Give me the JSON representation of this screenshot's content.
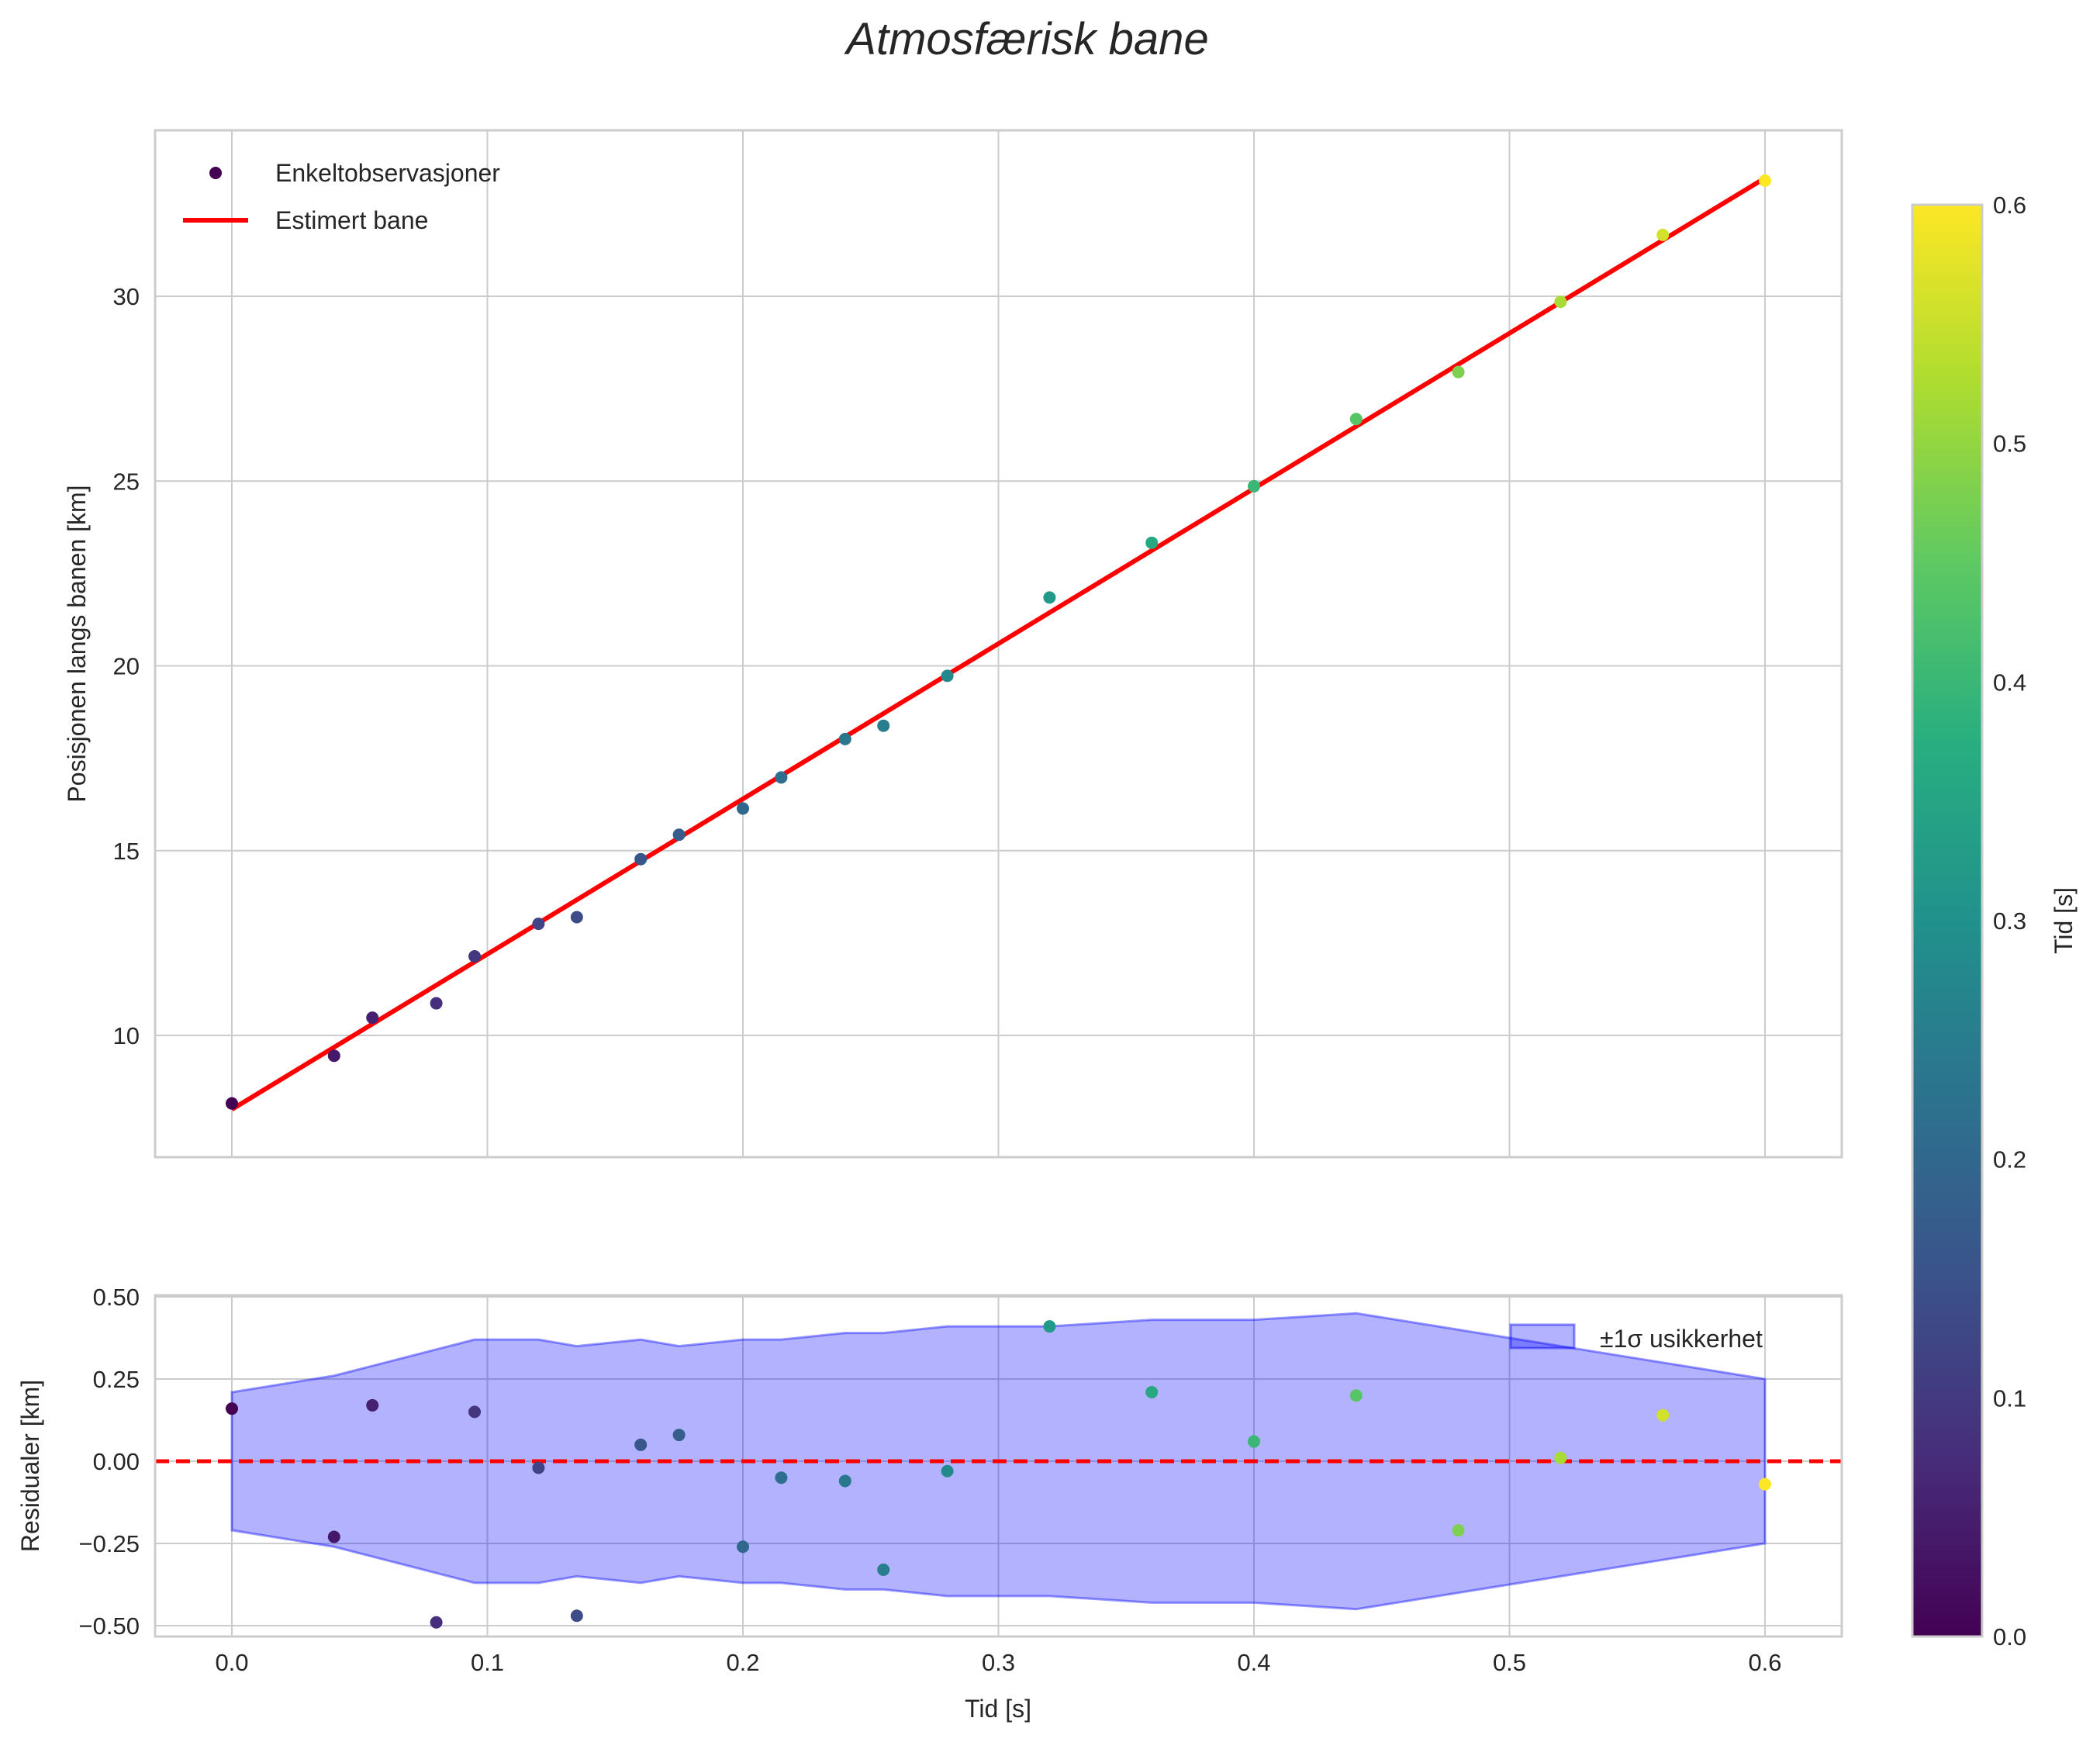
{
  "chart_data": [
    {
      "type": "scatter",
      "title": "Atmosfærisk bane",
      "xlabel": "",
      "ylabel": "Posisjonen langs banen [km]",
      "xlim": [
        -0.03,
        0.63
      ],
      "ylim": [
        6.7,
        34.5
      ],
      "yticks": [
        10,
        15,
        20,
        25,
        30
      ],
      "xticks": [
        0.0,
        0.1,
        0.2,
        0.3,
        0.4,
        0.5,
        0.6
      ],
      "grid": true,
      "legend": {
        "position": "top-left",
        "entries": [
          "Enkeltobservasjoner",
          "Estimert bane"
        ]
      },
      "observations": {
        "name": "Enkeltobservasjoner",
        "x": [
          0.0,
          0.04,
          0.055,
          0.08,
          0.095,
          0.12,
          0.135,
          0.16,
          0.175,
          0.2,
          0.215,
          0.24,
          0.255,
          0.28,
          0.32,
          0.36,
          0.4,
          0.44,
          0.48,
          0.52,
          0.56,
          0.6
        ],
        "y": [
          8.16,
          9.45,
          10.48,
          10.87,
          12.14,
          13.02,
          13.2,
          14.77,
          15.43,
          16.14,
          16.98,
          18.02,
          18.38,
          19.73,
          21.85,
          23.33,
          24.86,
          26.68,
          27.95,
          29.85,
          31.66,
          33.13
        ]
      },
      "fit": {
        "name": "Estimert bane",
        "x": [
          0.0,
          0.6
        ],
        "y": [
          8.0,
          33.2
        ],
        "color": "#ff0000"
      }
    },
    {
      "type": "scatter",
      "xlabel": "Tid [s]",
      "ylabel": "Residualer [km]",
      "xlim": [
        -0.03,
        0.63
      ],
      "ylim": [
        -0.53,
        0.5
      ],
      "yticks": [
        -0.5,
        -0.25,
        0.0,
        0.25,
        0.5
      ],
      "ytick_labels": [
        "−0.50",
        "−0.25",
        "0.00",
        "0.25",
        "0.50"
      ],
      "xticks": [
        0.0,
        0.1,
        0.2,
        0.3,
        0.4,
        0.5,
        0.6
      ],
      "xtick_labels": [
        "0.0",
        "0.1",
        "0.2",
        "0.3",
        "0.4",
        "0.5",
        "0.6"
      ],
      "grid": true,
      "legend": {
        "position": "top-right",
        "entries": [
          "±1σ usikkerhet"
        ]
      },
      "residuals": {
        "x": [
          0.0,
          0.04,
          0.055,
          0.08,
          0.095,
          0.12,
          0.135,
          0.16,
          0.175,
          0.2,
          0.215,
          0.24,
          0.255,
          0.28,
          0.32,
          0.36,
          0.4,
          0.44,
          0.48,
          0.52,
          0.56,
          0.6
        ],
        "y": [
          0.16,
          -0.23,
          0.17,
          -0.49,
          0.15,
          -0.02,
          -0.47,
          0.05,
          0.08,
          -0.26,
          -0.05,
          -0.06,
          -0.33,
          -0.03,
          0.41,
          0.21,
          0.06,
          0.2,
          -0.21,
          0.01,
          0.14,
          -0.07
        ]
      },
      "band": {
        "name": "±1σ usikkerhet",
        "x": [
          0.0,
          0.04,
          0.055,
          0.08,
          0.095,
          0.12,
          0.135,
          0.16,
          0.175,
          0.2,
          0.215,
          0.24,
          0.255,
          0.28,
          0.32,
          0.36,
          0.4,
          0.44,
          0.48,
          0.52,
          0.56,
          0.6
        ],
        "sigma": [
          0.21,
          0.26,
          0.29,
          0.34,
          0.37,
          0.37,
          0.35,
          0.37,
          0.35,
          0.37,
          0.37,
          0.39,
          0.39,
          0.41,
          0.41,
          0.43,
          0.43,
          0.45,
          0.4,
          0.35,
          0.3,
          0.25
        ],
        "color": "#0000ff"
      },
      "zero_line": {
        "y": 0,
        "color": "#ff0000",
        "style": "dashed"
      }
    }
  ],
  "colorbar": {
    "label": "Tid [s]",
    "range": [
      0.0,
      0.6
    ],
    "ticks": [
      "0.0",
      "0.1",
      "0.2",
      "0.3",
      "0.4",
      "0.5",
      "0.6"
    ],
    "colormap": "viridis"
  }
}
